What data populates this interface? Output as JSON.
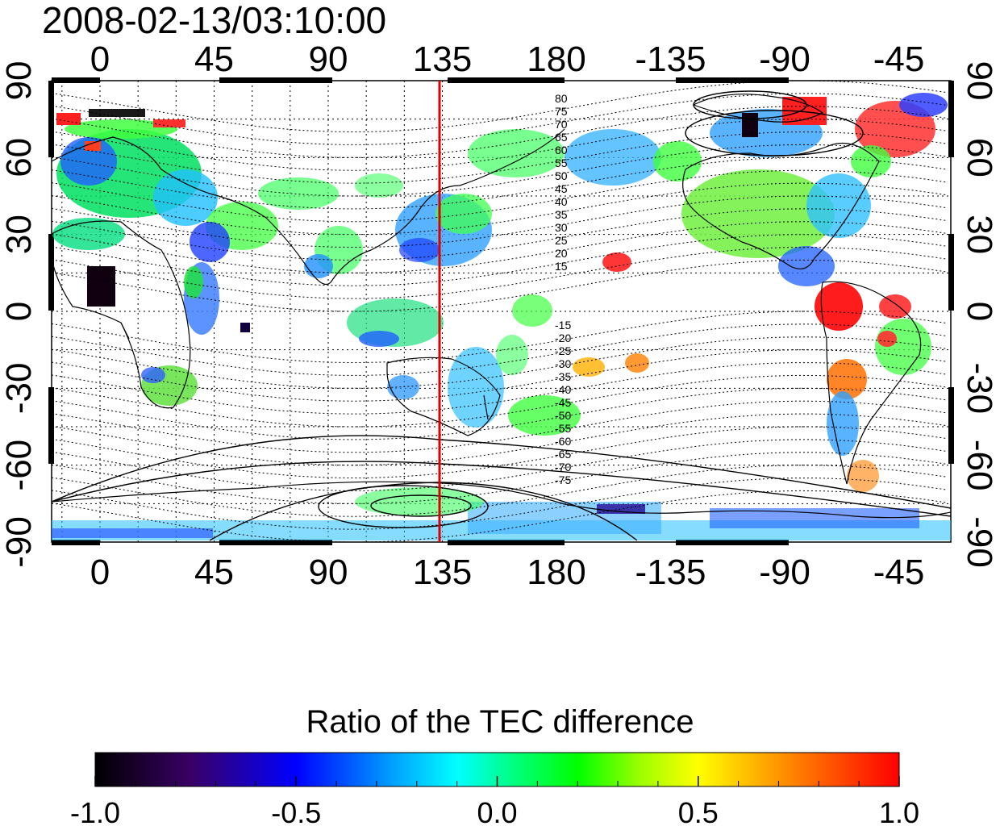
{
  "title": "2008-02-13/03:10:00",
  "map": {
    "lon_ticks": [
      "0",
      "45",
      "90",
      "135",
      "180",
      "-135",
      "-90",
      "-45"
    ],
    "lat_ticks": [
      "90",
      "60",
      "30",
      "0",
      "-30",
      "-60",
      "-90"
    ],
    "contour_labels_north": [
      "80",
      "75",
      "70",
      "65",
      "60",
      "55",
      "50",
      "45",
      "40",
      "35",
      "30",
      "25",
      "20",
      "15"
    ],
    "contour_labels_south": [
      "-15",
      "-20",
      "-25",
      "-30",
      "-35",
      "-40",
      "-45",
      "-50",
      "-55",
      "-60",
      "-65",
      "-70",
      "-75"
    ],
    "marker_longitude": 135,
    "colors": {
      "marker_line": "#e00000",
      "coastline": "#000000",
      "grid": "#000000"
    }
  },
  "colorbar": {
    "title": "Ratio of the TEC difference",
    "ticks": [
      "-1.0",
      "-0.5",
      "0.0",
      "0.5",
      "1.0"
    ],
    "range": [
      -1.0,
      1.0
    ],
    "colors": [
      "#000000",
      "#3a0066",
      "#0000ff",
      "#00a0ff",
      "#00ffff",
      "#00ff80",
      "#00ff00",
      "#a0ff00",
      "#ffff00",
      "#ff8000",
      "#ff0000"
    ]
  }
}
